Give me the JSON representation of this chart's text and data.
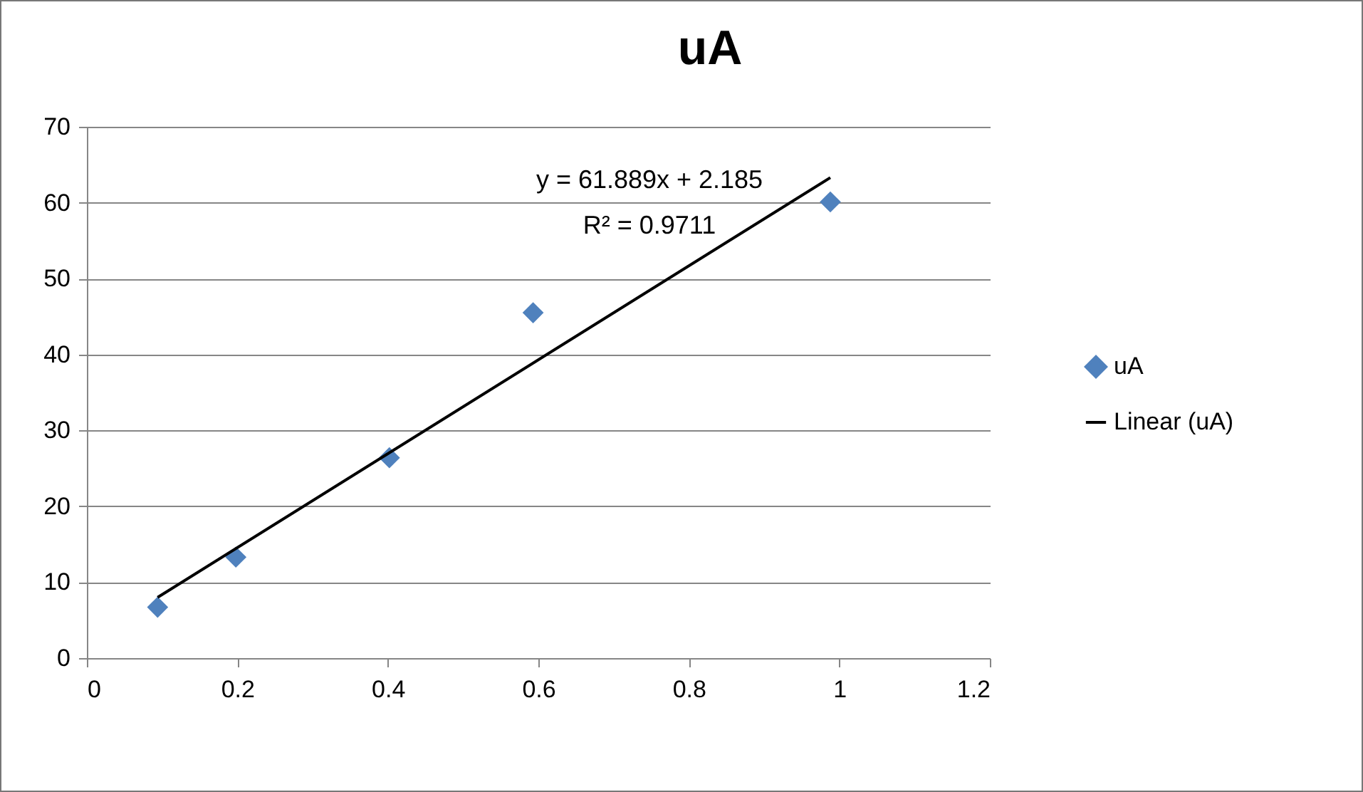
{
  "chart_data": {
    "type": "scatter",
    "title": "uA",
    "series": [
      {
        "name": "uA",
        "color": "#4f81bd",
        "x": [
          0.094,
          0.198,
          0.402,
          0.593,
          0.988
        ],
        "values": [
          6.7,
          13.3,
          26.4,
          45.5,
          60.1
        ]
      },
      {
        "name": "Linear (uA)",
        "type": "line",
        "marker": "none",
        "color": "#000000",
        "x": [
          0.094,
          0.988
        ],
        "values": [
          8.0,
          63.3
        ]
      }
    ],
    "annotations": [
      "y = 61.889x + 2.185",
      "R² = 0.9711"
    ],
    "xlim": [
      0,
      1.2
    ],
    "xticks": [
      0,
      0.2,
      0.4,
      0.6,
      0.8,
      1,
      1.2
    ],
    "ylim": [
      0,
      70
    ],
    "yticks": [
      0,
      10,
      20,
      30,
      40,
      50,
      60,
      70
    ],
    "grid": "y",
    "legend": "right",
    "marker": "diamond"
  }
}
